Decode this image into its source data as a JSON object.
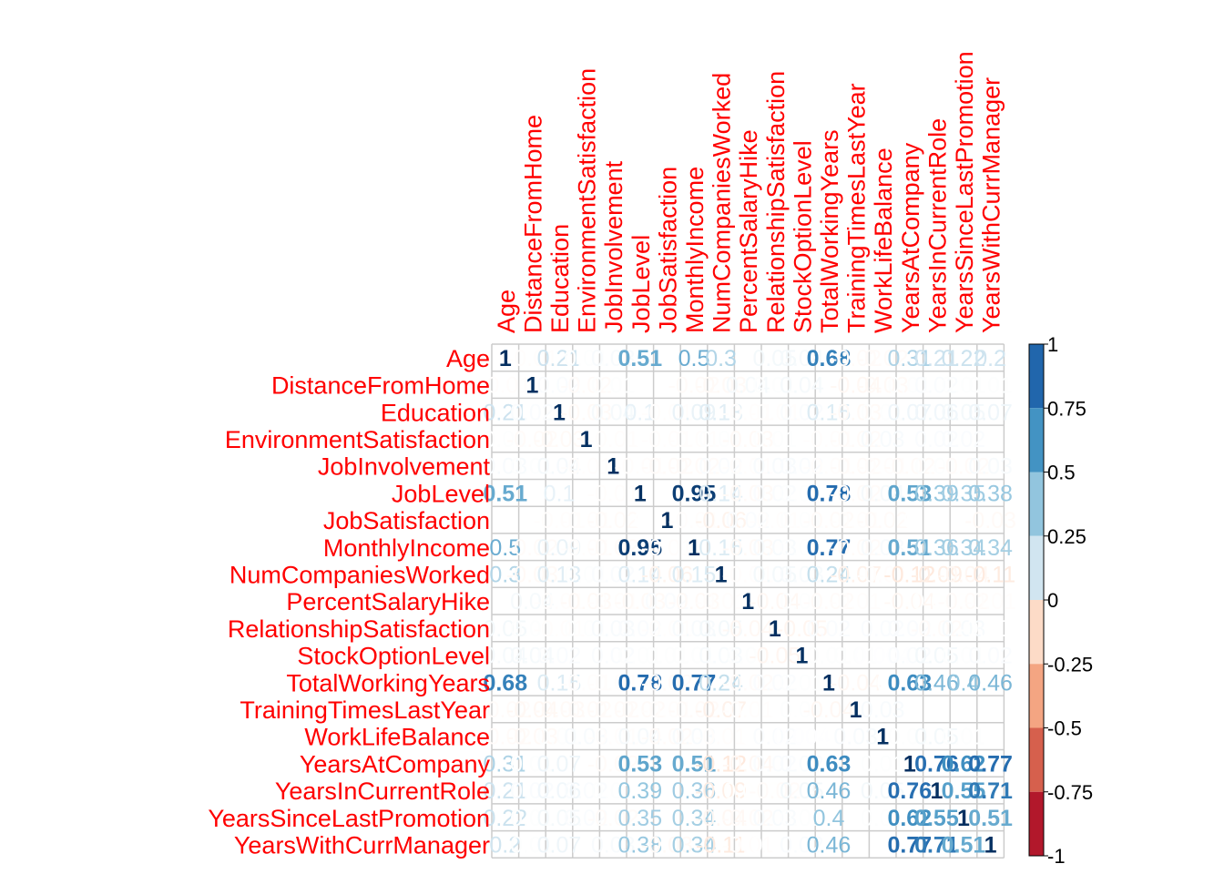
{
  "chart_data": {
    "type": "heatmap",
    "title": "",
    "variables": [
      "Age",
      "DistanceFromHome",
      "Education",
      "EnvironmentSatisfaction",
      "JobInvolvement",
      "JobLevel",
      "JobSatisfaction",
      "MonthlyIncome",
      "NumCompaniesWorked",
      "PercentSalaryHike",
      "RelationshipSatisfaction",
      "StockOptionLevel",
      "TotalWorkingYears",
      "TrainingTimesLastYear",
      "WorkLifeBalance",
      "YearsAtCompany",
      "YearsInCurrentRole",
      "YearsSinceLastPromotion",
      "YearsWithCurrManager"
    ],
    "matrix": [
      [
        1,
        -0.01,
        0.21,
        0.01,
        0.03,
        0.51,
        0,
        0.5,
        0.3,
        0,
        0.05,
        0.04,
        0.68,
        -0.02,
        -0.02,
        0.31,
        0.21,
        0.22,
        0.2
      ],
      [
        -0.01,
        1,
        0.02,
        -0.02,
        0.01,
        0,
        0,
        -0.02,
        -0.03,
        0.04,
        0.01,
        0.04,
        0,
        -0.04,
        -0.03,
        0.01,
        0.02,
        0.01,
        0.01
      ],
      [
        0.21,
        0.02,
        1,
        -0.03,
        0.04,
        0.1,
        -0.01,
        0.09,
        0.13,
        -0.01,
        -0.01,
        0.02,
        0.15,
        -0.03,
        0.01,
        0.07,
        0.06,
        0.05,
        0.07
      ],
      [
        0.01,
        -0.02,
        -0.03,
        1,
        -0.01,
        0,
        -0.01,
        -0.01,
        0.01,
        -0.03,
        0.01,
        0,
        -0.01,
        -0.02,
        0.03,
        0,
        0.02,
        0.02,
        0
      ],
      [
        0.03,
        0.01,
        0.04,
        -0.01,
        1,
        -0.01,
        -0.02,
        -0.02,
        0.02,
        -0.01,
        0.03,
        0.02,
        -0.01,
        -0.02,
        -0.01,
        -0.02,
        0.01,
        -0.02,
        0.03
      ],
      [
        0.51,
        0,
        0.1,
        0,
        -0.01,
        1,
        0,
        0.95,
        0.14,
        -0.03,
        0.02,
        0.01,
        0.78,
        -0.02,
        0.04,
        0.53,
        0.39,
        0.35,
        0.38
      ],
      [
        0,
        0,
        -0.01,
        -0.01,
        -0.02,
        0,
        1,
        -0.01,
        -0.06,
        0.02,
        -0.01,
        0.01,
        -0.02,
        -0.01,
        -0.02,
        0,
        0,
        0,
        -0.03
      ],
      [
        0.5,
        -0.02,
        0.09,
        -0.01,
        -0.02,
        0.95,
        -0.01,
        1,
        0.15,
        -0.03,
        0.03,
        0.01,
        0.77,
        -0.02,
        0.03,
        0.51,
        0.36,
        0.34,
        0.34
      ],
      [
        0.3,
        -0.03,
        0.13,
        0.01,
        0.02,
        0.14,
        -0.06,
        0.15,
        1,
        -0.01,
        0.05,
        0.03,
        0.24,
        -0.07,
        -0.01,
        -0.12,
        -0.09,
        -0.04,
        -0.11
      ],
      [
        0,
        0.04,
        -0.01,
        -0.03,
        -0.01,
        -0.03,
        0.02,
        -0.03,
        -0.01,
        1,
        -0.04,
        0.01,
        -0.02,
        -0.01,
        0,
        -0.04,
        -0.002,
        -0.02,
        -0.01
      ],
      [
        0.05,
        0.01,
        -0.01,
        0.01,
        0.03,
        0.02,
        -0.01,
        0.03,
        0.05,
        -0.04,
        1,
        -0.05,
        0.02,
        0,
        0.02,
        0.02,
        -0.02,
        0.03,
        -0.001
      ],
      [
        0.04,
        0.04,
        0.02,
        0,
        0.02,
        0.01,
        0.01,
        0.01,
        0.03,
        0.01,
        -0.05,
        1,
        0.01,
        0.01,
        0.004,
        0.02,
        0.05,
        0.01,
        0.02
      ],
      [
        0.68,
        0,
        0.15,
        -0.01,
        -0.01,
        0.78,
        -0.02,
        0.77,
        0.24,
        -0.02,
        0.02,
        0.01,
        1,
        -0.04,
        0,
        0.63,
        0.46,
        0.4,
        0.46
      ],
      [
        -0.02,
        -0.04,
        -0.03,
        -0.02,
        -0.02,
        -0.02,
        -0.01,
        -0.02,
        -0.07,
        -0.01,
        0,
        0.01,
        -0.04,
        1,
        0.03,
        0,
        0,
        0,
        0
      ],
      [
        -0.02,
        -0.03,
        0.01,
        0.03,
        -0.01,
        0.04,
        -0.02,
        0.03,
        -0.01,
        0,
        0.02,
        0.004,
        0,
        0.03,
        1,
        0.01,
        0.05,
        0.01,
        0
      ],
      [
        0.31,
        0.01,
        0.07,
        0,
        -0.02,
        0.53,
        0,
        0.51,
        -0.12,
        -0.04,
        0.02,
        0.02,
        0.63,
        0,
        0.01,
        1,
        0.76,
        0.62,
        0.77
      ],
      [
        0.21,
        0.02,
        0.06,
        0.02,
        0.01,
        0.39,
        0,
        0.36,
        -0.09,
        -0.002,
        -0.02,
        0.05,
        0.46,
        0,
        0.05,
        0.76,
        1,
        0.55,
        0.71
      ],
      [
        0.22,
        0.01,
        0.05,
        0.02,
        -0.02,
        0.35,
        0,
        0.34,
        -0.04,
        -0.02,
        0.03,
        0.01,
        0.4,
        0,
        0.01,
        0.62,
        0.55,
        1,
        0.51
      ],
      [
        0.2,
        0.01,
        0.07,
        0,
        0.03,
        0.38,
        -0.03,
        0.34,
        -0.11,
        -0.01,
        -0.001,
        0.02,
        0.46,
        0,
        0,
        0.77,
        0.71,
        0.51,
        1
      ]
    ],
    "colorbar": {
      "range": [
        -1,
        1
      ],
      "tick_labels": [
        "1",
        "0.75",
        "0.5",
        "0.25",
        "0",
        "-0.25",
        "-0.5",
        "-0.75",
        "-1"
      ],
      "colors": [
        "#2166ac",
        "#4393c3",
        "#92c5de",
        "#d1e5f0",
        "#fddbc7",
        "#f4a582",
        "#d6604d",
        "#b2182b"
      ]
    },
    "label_color": "#ff0000",
    "grid": true
  }
}
